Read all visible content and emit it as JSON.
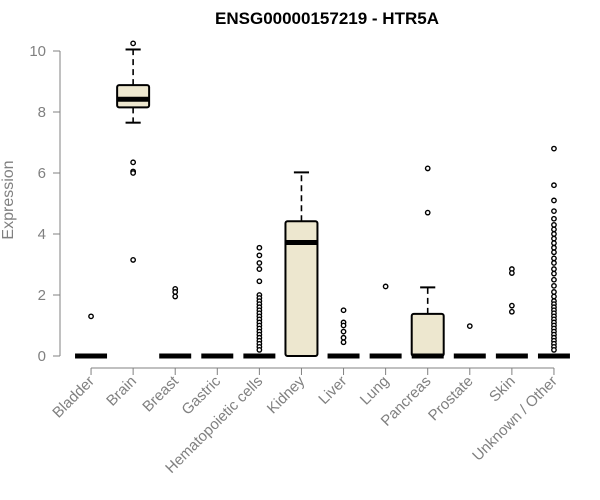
{
  "chart_data": {
    "type": "boxplot",
    "title": "ENSG00000157219 - HTR5A",
    "ylabel": "Expression",
    "xlabel": "",
    "ylim": [
      0,
      10
    ],
    "yticks": [
      0,
      2,
      4,
      6,
      8,
      10
    ],
    "grid": false,
    "legend": "none",
    "box_fill": "#EDE7CF",
    "box_stroke": "#000000",
    "axis_color": "#808080",
    "categories": [
      "Bladder",
      "Brain",
      "Breast",
      "Gastric",
      "Hematopoietic cells",
      "Kidney",
      "Liver",
      "Lung",
      "Pancreas",
      "Prostate",
      "Skin",
      "Unknown / Other"
    ],
    "boxes": [
      {
        "category": "Bladder",
        "q1": 0,
        "median": 0,
        "q3": 0,
        "whisker_low": 0,
        "whisker_high": 0,
        "outliers": [
          1.3
        ]
      },
      {
        "category": "Brain",
        "q1": 8.15,
        "median": 8.42,
        "q3": 8.88,
        "whisker_low": 7.65,
        "whisker_high": 10.05,
        "outliers": [
          10.25,
          6.35,
          6.05,
          6.0,
          3.15
        ]
      },
      {
        "category": "Breast",
        "q1": 0,
        "median": 0,
        "q3": 0,
        "whisker_low": 0,
        "whisker_high": 0,
        "outliers": [
          2.2,
          2.1,
          1.95
        ]
      },
      {
        "category": "Gastric",
        "q1": 0,
        "median": 0,
        "q3": 0,
        "whisker_low": 0,
        "whisker_high": 0,
        "outliers": []
      },
      {
        "category": "Hematopoietic cells",
        "q1": 0,
        "median": 0,
        "q3": 0,
        "whisker_low": 0,
        "whisker_high": 0,
        "outliers": [
          3.55,
          3.3,
          3.05,
          2.85,
          2.45,
          2.0,
          1.9,
          1.8,
          1.7,
          1.6,
          1.5,
          1.4,
          1.3,
          1.2,
          1.1,
          1.0,
          0.9,
          0.8,
          0.7,
          0.6,
          0.5,
          0.4,
          0.3,
          0.2
        ]
      },
      {
        "category": "Kidney",
        "q1": 0,
        "median": 3.72,
        "q3": 4.42,
        "whisker_low": 0,
        "whisker_high": 6.02,
        "outliers": []
      },
      {
        "category": "Liver",
        "q1": 0,
        "median": 0,
        "q3": 0,
        "whisker_low": 0,
        "whisker_high": 0,
        "outliers": [
          1.5,
          1.1,
          1.0,
          0.8,
          0.6,
          0.45
        ]
      },
      {
        "category": "Lung",
        "q1": 0,
        "median": 0,
        "q3": 0,
        "whisker_low": 0,
        "whisker_high": 0,
        "outliers": [
          2.28
        ]
      },
      {
        "category": "Pancreas",
        "q1": 0,
        "median": 0,
        "q3": 1.38,
        "whisker_low": 0,
        "whisker_high": 2.25,
        "outliers": [
          6.15,
          4.7
        ]
      },
      {
        "category": "Prostate",
        "q1": 0,
        "median": 0,
        "q3": 0,
        "whisker_low": 0,
        "whisker_high": 0,
        "outliers": [
          0.98
        ]
      },
      {
        "category": "Skin",
        "q1": 0,
        "median": 0,
        "q3": 0,
        "whisker_low": 0,
        "whisker_high": 0,
        "outliers": [
          2.85,
          2.72,
          1.65,
          1.45
        ]
      },
      {
        "category": "Unknown / Other",
        "q1": 0,
        "median": 0,
        "q3": 0,
        "whisker_low": 0,
        "whisker_high": 0,
        "outliers": [
          6.8,
          5.6,
          5.1,
          4.75,
          4.5,
          4.3,
          4.15,
          4.0,
          3.85,
          3.7,
          3.55,
          3.4,
          3.2,
          3.05,
          2.85,
          2.7,
          2.5,
          2.3,
          2.1,
          1.95,
          1.8,
          1.7,
          1.6,
          1.5,
          1.4,
          1.3,
          1.2,
          1.1,
          1.0,
          0.9,
          0.8,
          0.7,
          0.6,
          0.5,
          0.4,
          0.3,
          0.2
        ]
      }
    ]
  }
}
